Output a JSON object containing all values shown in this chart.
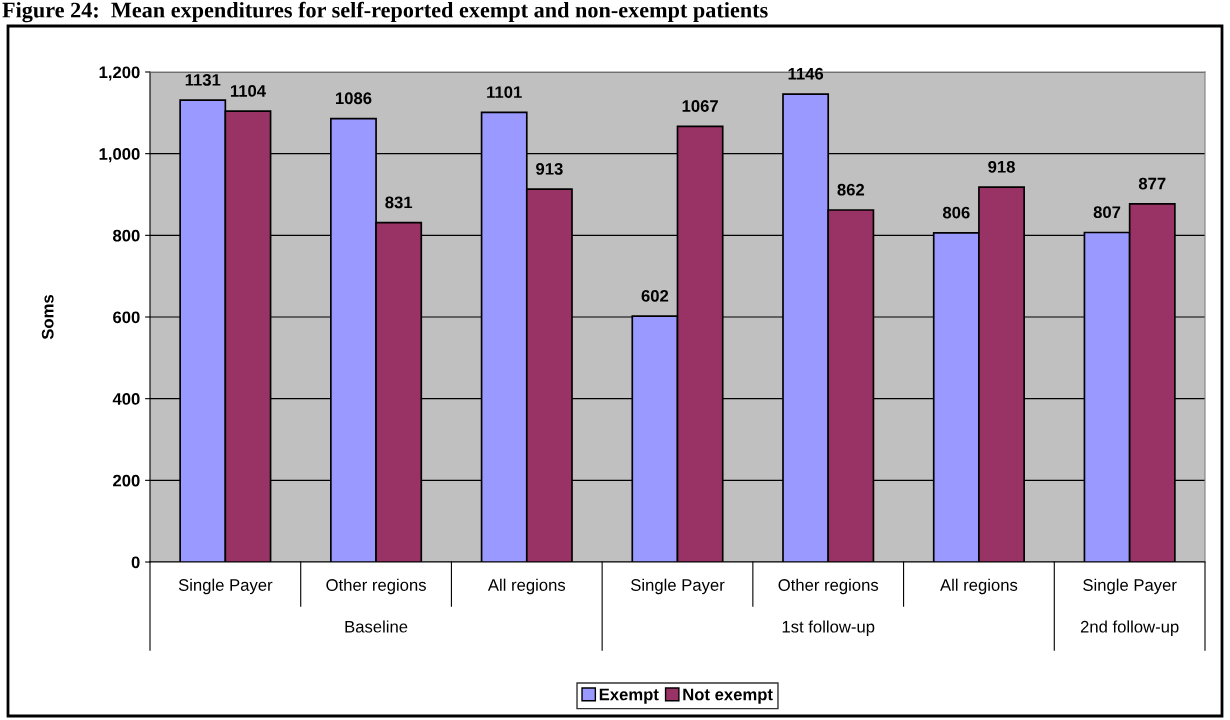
{
  "chart_data": {
    "type": "bar",
    "title": "Figure 24:  Mean expenditures for self-reported exempt and non-exempt patients",
    "ylabel": "Soms",
    "categories": [
      "Single Payer",
      "Other regions",
      "All regions",
      "Single Payer",
      "Other regions",
      "All regions",
      "Single Payer"
    ],
    "series": [
      {
        "name": "Exempt",
        "color": "#9999ff",
        "values": [
          1131,
          1086,
          1101,
          602,
          1146,
          806,
          807
        ]
      },
      {
        "name": "Not exempt",
        "color": "#993366",
        "values": [
          1104,
          831,
          913,
          1067,
          862,
          918,
          877
        ]
      }
    ],
    "annotations": [
      "Baseline",
      "1st follow-up",
      "2nd follow-up"
    ],
    "ylim": [
      0,
      1200
    ],
    "yticks": [
      0,
      {
        "value": 200,
        "label": "200"
      },
      {
        "value": 400,
        "label": "400"
      },
      {
        "value": 600,
        "label": "600"
      },
      {
        "value": 800,
        "label": "800"
      },
      {
        "value": 1000,
        "label": "1,000"
      },
      {
        "value": 1200,
        "label": "1,200"
      }
    ],
    "grid": "y",
    "legend": "bottom",
    "data_labels": true
  }
}
